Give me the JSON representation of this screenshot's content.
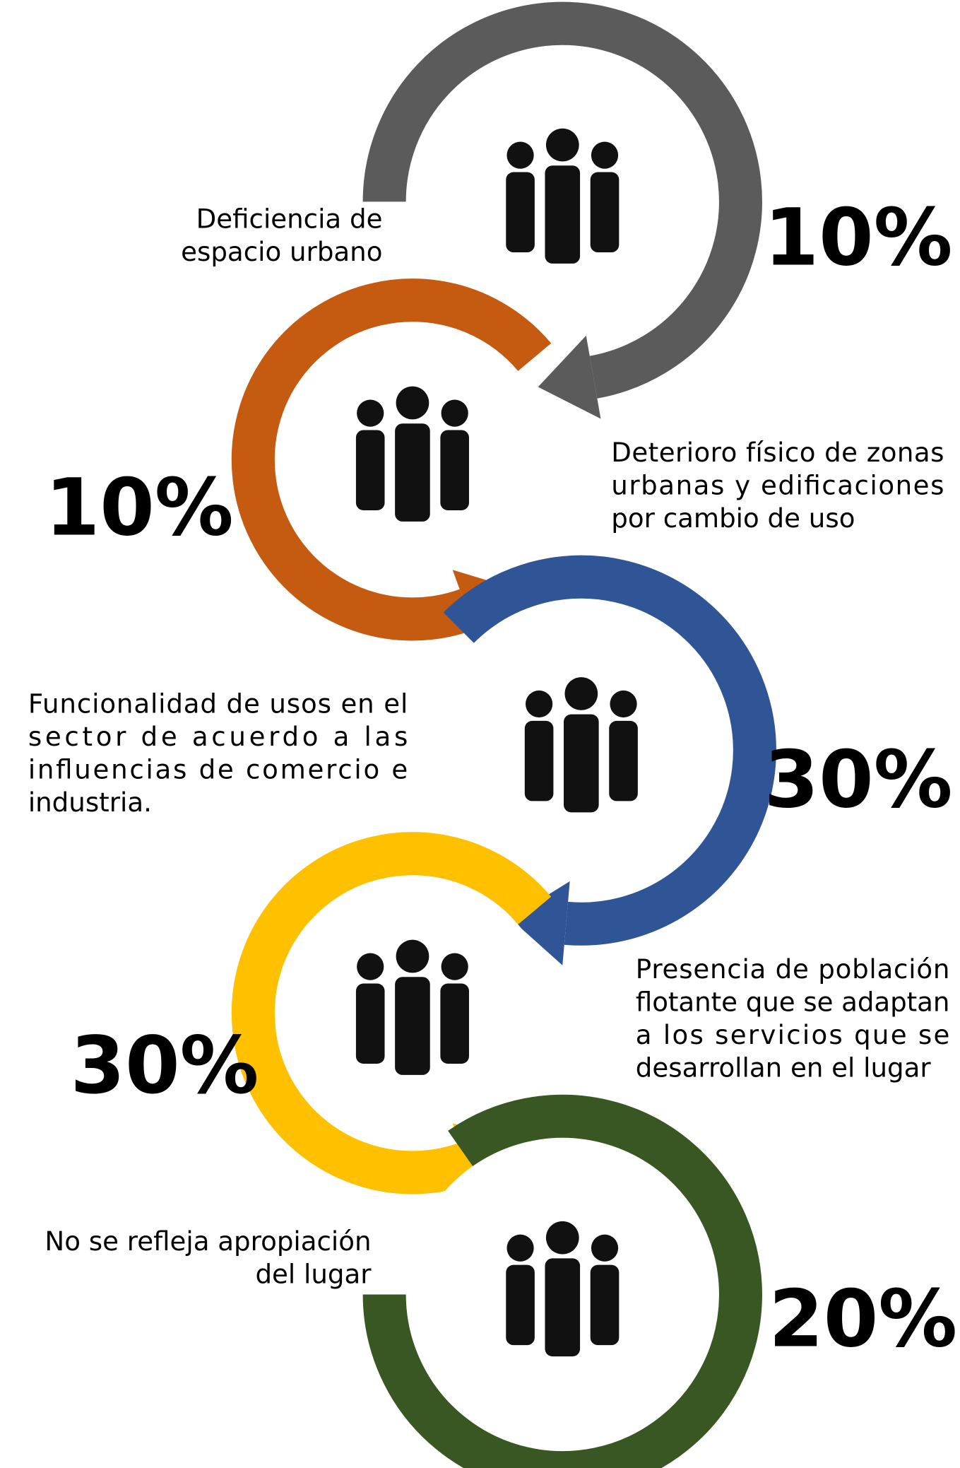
{
  "items": [
    {
      "lines": [
        "Deficiencia de",
        "espacio urbano"
      ],
      "percent": "10%"
    },
    {
      "lines": [
        "Deterioro físico de zonas",
        "urbanas y edificaciones",
        "por cambio de uso"
      ],
      "percent": "10%"
    },
    {
      "lines": [
        "Funcionalidad de usos en el",
        "sector de acuerdo a las",
        "influencias de comercio e",
        "industria."
      ],
      "percent": "30%"
    },
    {
      "lines": [
        "Presencia de población",
        "flotante que se adaptan",
        "a los servicios que se",
        "desarrollan en el lugar"
      ],
      "percent": "30%"
    },
    {
      "lines": [
        "No se refleja apropiación",
        "del lugar"
      ],
      "percent": "20%"
    }
  ]
}
